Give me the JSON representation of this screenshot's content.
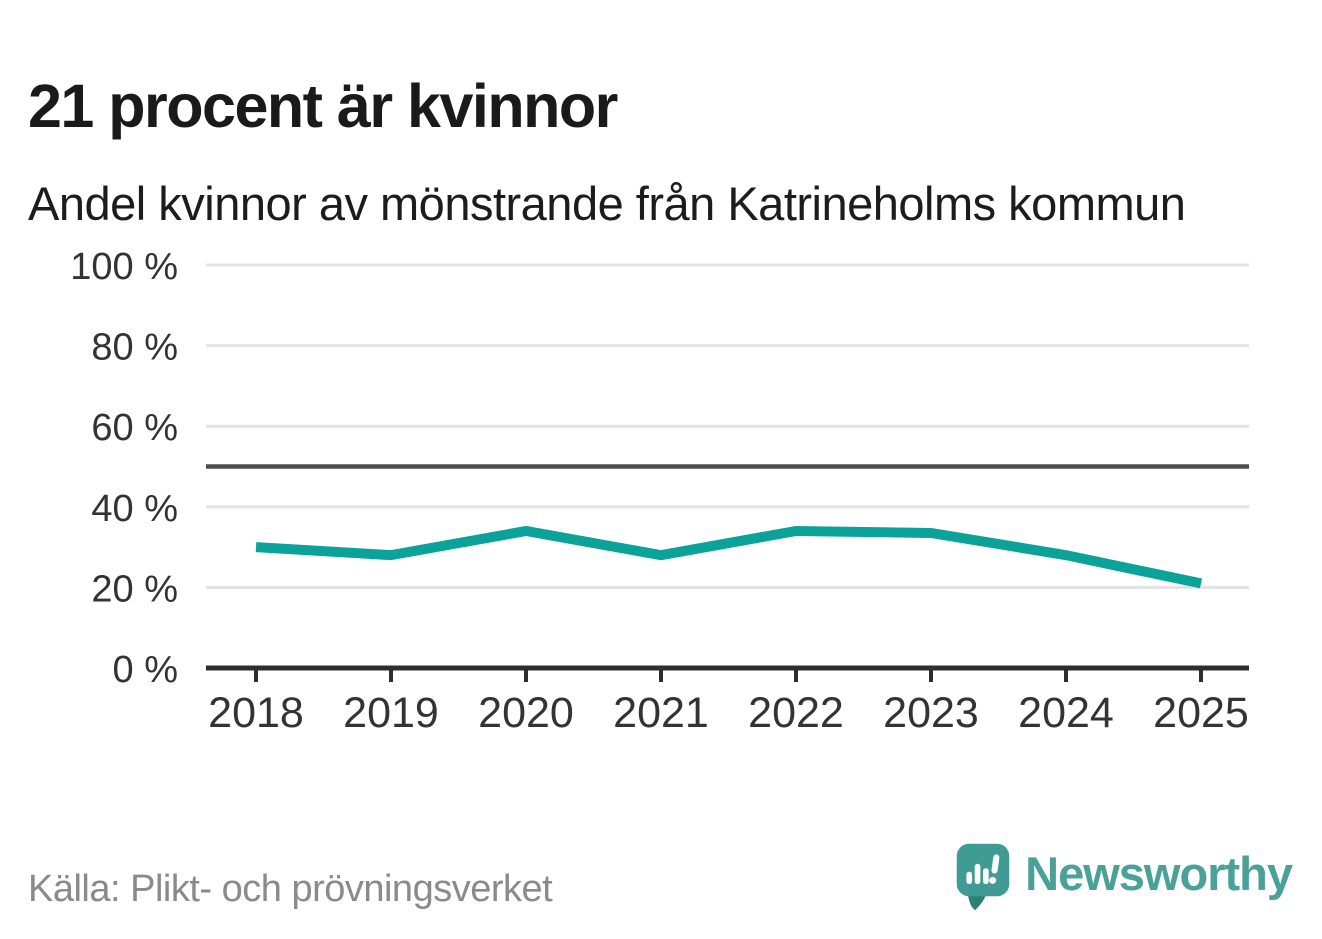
{
  "header": {
    "title": "21 procent är kvinnor",
    "subtitle": "Andel kvinnor av mönstrande från Katrineholms kommun"
  },
  "chart_data": {
    "type": "line",
    "title": "Andel kvinnor av mönstrande från Katrineholms kommun",
    "categories": [
      "2018",
      "2019",
      "2020",
      "2021",
      "2022",
      "2023",
      "2024",
      "2025"
    ],
    "series": [
      {
        "name": "Andel kvinnor av mönstrande",
        "color": "#0ba29a",
        "values": [
          30,
          28,
          34,
          28,
          34,
          33.5,
          28,
          21
        ]
      }
    ],
    "xlabel": "",
    "ylabel": "",
    "ylim": [
      0,
      100
    ],
    "yticks": [
      {
        "value": 0,
        "label": "0 %"
      },
      {
        "value": 20,
        "label": "20 %"
      },
      {
        "value": 40,
        "label": "40 %"
      },
      {
        "value": 60,
        "label": "60 %"
      },
      {
        "value": 80,
        "label": "80 %"
      },
      {
        "value": 100,
        "label": "100 %"
      }
    ],
    "reference_line": {
      "value": 50,
      "color": "#4d4d4d"
    },
    "grid": true,
    "legend_position": "none",
    "colors": {
      "grid": "#e3e3e3",
      "axis": "#2e2e2e",
      "tick_label": "#333333"
    }
  },
  "footer": {
    "source": "Källa: Plikt- och prövningsverket",
    "brand_name": "Newsworthy",
    "brand_color": "#4aa19a",
    "logo_mark_color": "#3f9b93",
    "logo_tail_color": "#2e7f78"
  }
}
